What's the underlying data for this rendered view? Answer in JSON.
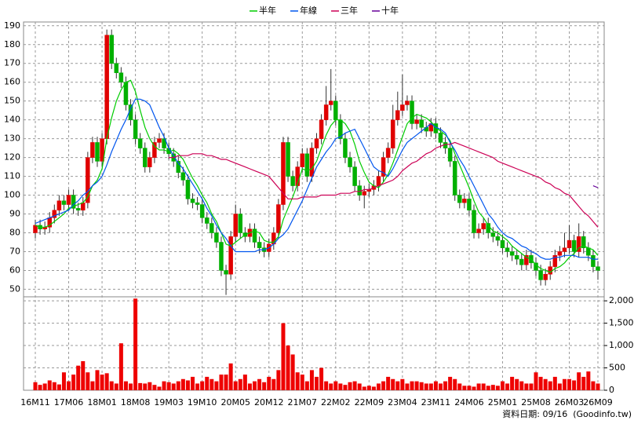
{
  "chart_data": {
    "type": "candlestick",
    "categories": [
      "16M11",
      null,
      null,
      null,
      null,
      null,
      null,
      "17M06",
      null,
      null,
      null,
      null,
      null,
      null,
      "18M01",
      null,
      null,
      null,
      null,
      null,
      null,
      "18M08",
      null,
      null,
      null,
      null,
      null,
      null,
      "19M03",
      null,
      null,
      null,
      null,
      null,
      null,
      "19M10",
      null,
      null,
      null,
      null,
      null,
      null,
      "20M05",
      null,
      null,
      null,
      null,
      null,
      null,
      "20M12",
      null,
      null,
      null,
      null,
      null,
      null,
      "21M07",
      null,
      null,
      null,
      null,
      null,
      null,
      "22M02",
      null,
      null,
      null,
      null,
      null,
      null,
      "22M09",
      null,
      null,
      null,
      null,
      null,
      null,
      "23M04",
      null,
      null,
      null,
      null,
      null,
      null,
      "23M11",
      null,
      null,
      null,
      null,
      null,
      null,
      "24M06",
      null,
      null,
      null,
      null,
      null,
      null,
      "25M01",
      null,
      null,
      null,
      null,
      null,
      null,
      "25M08",
      null,
      null,
      null,
      null,
      null,
      null,
      "26M03",
      null,
      null,
      null,
      null,
      null,
      "26M09"
    ],
    "open": [
      80,
      84,
      82,
      83,
      88,
      92,
      97,
      95,
      100,
      93,
      92,
      96,
      120,
      128,
      118,
      130,
      185,
      170,
      165,
      160,
      148,
      140,
      130,
      125,
      115,
      120,
      128,
      130,
      125,
      122,
      118,
      112,
      108,
      98,
      96,
      95,
      88,
      85,
      80,
      75,
      60,
      58,
      78,
      90,
      80,
      78,
      82,
      75,
      72,
      70,
      74,
      80,
      95,
      128,
      110,
      105,
      115,
      122,
      110,
      125,
      130,
      140,
      148,
      150,
      140,
      130,
      120,
      115,
      105,
      100,
      102,
      103,
      105,
      110,
      120,
      125,
      140,
      145,
      148,
      150,
      138,
      140,
      136,
      134,
      138,
      133,
      128,
      125,
      118,
      100,
      96,
      98,
      92,
      80,
      82,
      85,
      80,
      78,
      76,
      72,
      70,
      68,
      66,
      63,
      68,
      64,
      60,
      55,
      58,
      62,
      68,
      70,
      72,
      76,
      70,
      78,
      72,
      68,
      62
    ],
    "high": [
      87,
      87,
      86,
      91,
      95,
      100,
      100,
      103,
      103,
      96,
      99,
      123,
      131,
      131,
      133,
      188,
      188,
      173,
      168,
      163,
      151,
      143,
      133,
      128,
      123,
      131,
      133,
      133,
      128,
      125,
      121,
      115,
      111,
      101,
      99,
      98,
      91,
      88,
      83,
      78,
      63,
      81,
      95,
      93,
      83,
      85,
      85,
      78,
      75,
      77,
      83,
      98,
      131,
      131,
      113,
      118,
      125,
      125,
      128,
      133,
      143,
      158,
      167,
      153,
      143,
      133,
      123,
      118,
      108,
      105,
      106,
      108,
      113,
      123,
      128,
      148,
      155,
      164,
      153,
      153,
      143,
      143,
      139,
      141,
      141,
      136,
      131,
      128,
      121,
      103,
      101,
      101,
      95,
      85,
      88,
      88,
      83,
      81,
      79,
      75,
      73,
      71,
      69,
      71,
      71,
      67,
      63,
      61,
      65,
      71,
      73,
      80,
      84,
      79,
      85,
      81,
      75,
      71,
      65
    ],
    "low": [
      77,
      79,
      79,
      80,
      85,
      89,
      92,
      92,
      90,
      89,
      89,
      93,
      117,
      115,
      115,
      127,
      167,
      162,
      157,
      145,
      137,
      127,
      122,
      112,
      112,
      117,
      125,
      122,
      119,
      115,
      109,
      105,
      95,
      93,
      92,
      85,
      82,
      77,
      72,
      57,
      47,
      55,
      75,
      77,
      75,
      75,
      72,
      69,
      67,
      67,
      71,
      77,
      92,
      107,
      102,
      102,
      112,
      107,
      107,
      122,
      127,
      137,
      145,
      137,
      127,
      117,
      112,
      102,
      97,
      93,
      99,
      100,
      102,
      107,
      117,
      122,
      137,
      142,
      145,
      135,
      135,
      133,
      131,
      131,
      130,
      125,
      122,
      115,
      97,
      93,
      93,
      89,
      77,
      77,
      79,
      77,
      75,
      73,
      69,
      67,
      65,
      63,
      60,
      60,
      61,
      57,
      52,
      52,
      55,
      59,
      65,
      67,
      69,
      67,
      67,
      69,
      65,
      59,
      55
    ],
    "close": [
      84,
      82,
      83,
      88,
      92,
      97,
      95,
      100,
      93,
      92,
      96,
      120,
      128,
      118,
      130,
      185,
      170,
      165,
      160,
      148,
      140,
      130,
      125,
      115,
      120,
      128,
      130,
      125,
      122,
      118,
      112,
      108,
      98,
      96,
      95,
      88,
      85,
      80,
      75,
      60,
      58,
      78,
      90,
      80,
      78,
      82,
      75,
      72,
      70,
      74,
      80,
      95,
      128,
      110,
      105,
      115,
      122,
      110,
      125,
      130,
      140,
      148,
      150,
      140,
      130,
      120,
      115,
      105,
      100,
      102,
      103,
      105,
      110,
      120,
      125,
      140,
      145,
      148,
      150,
      138,
      140,
      136,
      134,
      138,
      133,
      128,
      125,
      118,
      100,
      96,
      98,
      92,
      80,
      82,
      85,
      80,
      78,
      76,
      72,
      70,
      68,
      66,
      63,
      68,
      64,
      60,
      55,
      58,
      62,
      68,
      70,
      72,
      76,
      70,
      78,
      72,
      68,
      62,
      60
    ],
    "up_color": "#e00000",
    "down_color": "#00b000",
    "series": [
      {
        "name": "半年",
        "color": "#00cc00",
        "values": [
          84,
          83,
          83,
          84,
          86,
          88,
          90,
          93,
          94,
          95,
          96,
          99,
          105,
          108,
          114,
          130,
          141,
          150,
          156,
          160,
          161,
          155,
          145,
          136,
          130,
          126,
          124,
          124,
          123,
          124,
          122,
          119,
          114,
          109,
          105,
          100,
          96,
          90,
          86,
          80,
          74,
          73,
          75,
          77,
          79,
          80,
          81,
          80,
          76,
          75,
          75,
          78,
          87,
          93,
          99,
          106,
          114,
          113,
          114,
          118,
          125,
          132,
          137,
          140,
          140,
          138,
          134,
          127,
          118,
          112,
          107,
          105,
          104,
          107,
          111,
          117,
          124,
          131,
          138,
          141,
          143,
          142,
          141,
          139,
          136,
          134,
          132,
          129,
          122,
          116,
          110,
          104,
          97,
          91,
          88,
          84,
          81,
          80,
          78,
          76,
          73,
          71,
          69,
          67,
          66,
          63,
          61,
          60,
          59,
          61,
          62,
          64,
          67,
          69,
          72,
          73,
          72,
          71,
          68
        ]
      },
      {
        "name": "年線",
        "color": "#0055ee",
        "values": [
          85,
          86,
          87,
          88,
          89,
          90,
          91,
          92,
          95,
          97,
          100,
          102,
          105,
          107,
          110,
          116,
          123,
          129,
          135,
          140,
          146,
          151,
          151,
          150,
          148,
          142,
          136,
          131,
          125,
          121,
          117,
          114,
          110,
          106,
          102,
          98,
          93,
          89,
          84,
          80,
          77,
          73,
          70,
          70,
          70,
          70,
          70,
          71,
          71,
          72,
          74,
          77,
          79,
          82,
          87,
          92,
          97,
          103,
          109,
          115,
          119,
          123,
          126,
          130,
          131,
          133,
          134,
          135,
          130,
          125,
          120,
          115,
          113,
          112,
          110,
          114,
          119,
          124,
          128,
          130,
          132,
          134,
          136,
          138,
          136,
          135,
          133,
          128,
          124,
          119,
          115,
          110,
          105,
          100,
          95,
          90,
          87,
          83,
          80,
          78,
          77,
          75,
          73,
          72,
          70,
          69,
          67,
          66,
          66,
          67,
          67,
          68,
          68,
          68,
          67,
          67,
          67,
          66,
          66
        ]
      },
      {
        "name": "三年",
        "color": "#cc0055",
        "values": [
          null,
          null,
          null,
          null,
          null,
          null,
          null,
          null,
          null,
          null,
          null,
          null,
          null,
          null,
          null,
          null,
          null,
          null,
          null,
          null,
          null,
          null,
          null,
          null,
          null,
          null,
          null,
          null,
          120,
          120,
          121,
          121,
          121,
          122,
          122,
          122,
          121,
          121,
          120,
          119,
          119,
          118,
          117,
          116,
          115,
          114,
          113,
          112,
          111,
          110,
          107,
          104,
          101,
          98,
          98,
          98,
          99,
          99,
          99,
          99,
          100,
          100,
          100,
          100,
          101,
          101,
          101,
          102,
          102,
          103,
          103,
          104,
          105,
          106,
          107,
          108,
          110,
          113,
          115,
          117,
          118,
          120,
          122,
          123,
          125,
          126,
          127,
          127,
          128,
          127,
          126,
          125,
          124,
          123,
          122,
          121,
          120,
          118,
          117,
          116,
          115,
          114,
          113,
          112,
          111,
          110,
          109,
          107,
          106,
          104,
          103,
          101,
          100,
          97,
          94,
          91,
          89,
          86,
          83
        ]
      },
      {
        "name": "十年",
        "color": "#660099",
        "values": [
          null,
          null,
          null,
          null,
          null,
          null,
          null,
          null,
          null,
          null,
          null,
          null,
          null,
          null,
          null,
          null,
          null,
          null,
          null,
          null,
          null,
          null,
          null,
          null,
          null,
          null,
          null,
          null,
          null,
          null,
          null,
          null,
          null,
          null,
          null,
          null,
          null,
          null,
          null,
          null,
          null,
          null,
          null,
          null,
          null,
          null,
          null,
          null,
          null,
          null,
          null,
          null,
          null,
          null,
          null,
          null,
          null,
          null,
          null,
          null,
          null,
          null,
          null,
          null,
          null,
          null,
          null,
          null,
          null,
          null,
          null,
          null,
          null,
          null,
          null,
          null,
          null,
          null,
          null,
          null,
          null,
          null,
          null,
          null,
          null,
          null,
          null,
          null,
          null,
          null,
          null,
          null,
          null,
          null,
          null,
          null,
          null,
          null,
          null,
          null,
          null,
          null,
          null,
          null,
          null,
          null,
          null,
          null,
          null,
          null,
          null,
          null,
          null,
          null,
          null,
          null,
          null,
          105,
          104
        ]
      }
    ],
    "ylim": [
      46,
      192
    ],
    "yticks": [
      50,
      60,
      70,
      80,
      90,
      100,
      110,
      120,
      130,
      140,
      150,
      160,
      170,
      180,
      190
    ],
    "grid": true,
    "volume": {
      "color": "#ee0000",
      "values": [
        180,
        120,
        150,
        220,
        180,
        130,
        400,
        200,
        350,
        550,
        650,
        400,
        200,
        450,
        350,
        380,
        200,
        150,
        1050,
        200,
        150,
        2050,
        160,
        150,
        180,
        120,
        80,
        200,
        180,
        150,
        200,
        250,
        220,
        300,
        150,
        200,
        300,
        250,
        200,
        350,
        350,
        600,
        200,
        250,
        350,
        150,
        200,
        250,
        180,
        300,
        250,
        450,
        1500,
        1000,
        800,
        400,
        350,
        200,
        450,
        300,
        500,
        200,
        150,
        200,
        150,
        120,
        180,
        200,
        150,
        80,
        100,
        80,
        150,
        200,
        300,
        250,
        200,
        250,
        150,
        200,
        200,
        180,
        150,
        150,
        200,
        150,
        200,
        300,
        250,
        150,
        100,
        100,
        80,
        150,
        150,
        100,
        120,
        100,
        200,
        150,
        300,
        250,
        200,
        150,
        150,
        400,
        300,
        250,
        200,
        300,
        150,
        250,
        250,
        220,
        400,
        300,
        420,
        200,
        150
      ],
      "ylim": [
        0,
        2090
      ],
      "yticks": [
        0,
        500,
        {
          "value": 1000,
          "label": "1,000"
        },
        {
          "value": 1500,
          "label": "1,500"
        },
        {
          "value": 2000,
          "label": "2,000"
        }
      ]
    },
    "footnote": "資料日期: 09/16  (Goodinfo.tw)"
  }
}
